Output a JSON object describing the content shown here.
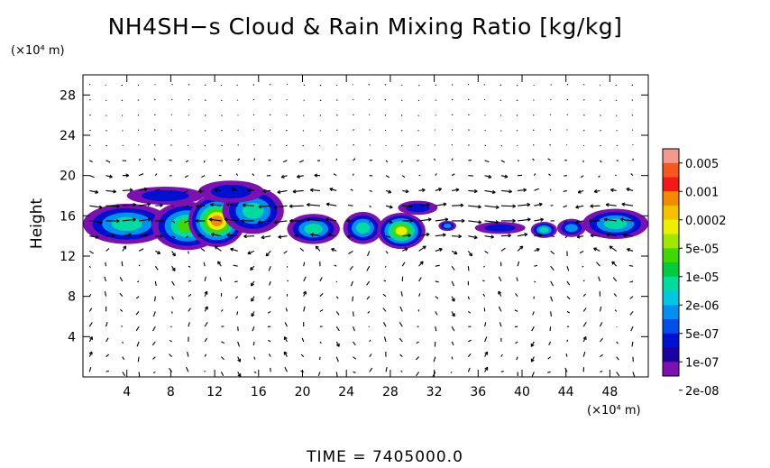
{
  "chart_data": {
    "type": "heatmap",
    "title": "NH4SH−s Cloud & Rain Mixing Ratio [kg/kg]",
    "ylabel": "Height",
    "x_unit": "(×10⁴ m)",
    "y_unit": "(×10⁴ m)",
    "footer": "TIME = 7405000.0",
    "xlim": [
      0,
      51.5
    ],
    "ylim": [
      0,
      30
    ],
    "xticks": [
      4,
      8,
      12,
      16,
      20,
      24,
      28,
      32,
      36,
      40,
      44,
      48
    ],
    "yticks": [
      4,
      8,
      12,
      16,
      20,
      24,
      28
    ],
    "colorbar": {
      "labels": [
        "0.005",
        "0.001",
        "0.0002",
        "5e-05",
        "1e-05",
        "2e-06",
        "5e-07",
        "1e-07",
        "2e-08"
      ],
      "colors": [
        "#f49a8c",
        "#f4581c",
        "#f41818",
        "#f48a00",
        "#f4c000",
        "#ecf000",
        "#a0e800",
        "#40d800",
        "#00cc40",
        "#00dca0",
        "#00c8e0",
        "#0090f0",
        "#0050e8",
        "#0010d0",
        "#1c00a0",
        "#7c10b0"
      ]
    },
    "cloud_blobs": [
      {
        "x": 4,
        "y": 15.2,
        "rx": 4.0,
        "ry": 2.0,
        "level": 0.55
      },
      {
        "x": 9.5,
        "y": 15.0,
        "rx": 3.2,
        "ry": 2.4,
        "level": 0.6
      },
      {
        "x": 12.2,
        "y": 15.5,
        "rx": 2.6,
        "ry": 2.6,
        "level": 0.9
      },
      {
        "x": 15.5,
        "y": 16.5,
        "rx": 2.8,
        "ry": 2.3,
        "level": 0.5
      },
      {
        "x": 13.5,
        "y": 18.4,
        "rx": 3.0,
        "ry": 1.1,
        "level": 0.3
      },
      {
        "x": 7.5,
        "y": 18.0,
        "rx": 3.5,
        "ry": 0.9,
        "level": 0.15
      },
      {
        "x": 21.0,
        "y": 14.7,
        "rx": 2.4,
        "ry": 1.5,
        "level": 0.5
      },
      {
        "x": 25.5,
        "y": 14.8,
        "rx": 1.8,
        "ry": 1.6,
        "level": 0.55
      },
      {
        "x": 29.0,
        "y": 14.5,
        "rx": 2.2,
        "ry": 1.8,
        "level": 0.75
      },
      {
        "x": 30.5,
        "y": 16.8,
        "rx": 1.8,
        "ry": 0.7,
        "level": 0.1
      },
      {
        "x": 33.2,
        "y": 15.0,
        "rx": 0.8,
        "ry": 0.5,
        "level": 0.4
      },
      {
        "x": 38.0,
        "y": 14.8,
        "rx": 2.3,
        "ry": 0.6,
        "level": 0.3
      },
      {
        "x": 42.0,
        "y": 14.6,
        "rx": 1.2,
        "ry": 0.8,
        "level": 0.45
      },
      {
        "x": 44.5,
        "y": 14.8,
        "rx": 1.3,
        "ry": 0.9,
        "level": 0.4
      },
      {
        "x": 48.5,
        "y": 15.2,
        "rx": 3.0,
        "ry": 1.5,
        "level": 0.5
      }
    ],
    "wind_vectors": "dense field of black arrows over entire domain; strongest horizontal flow near heights 12-20"
  }
}
